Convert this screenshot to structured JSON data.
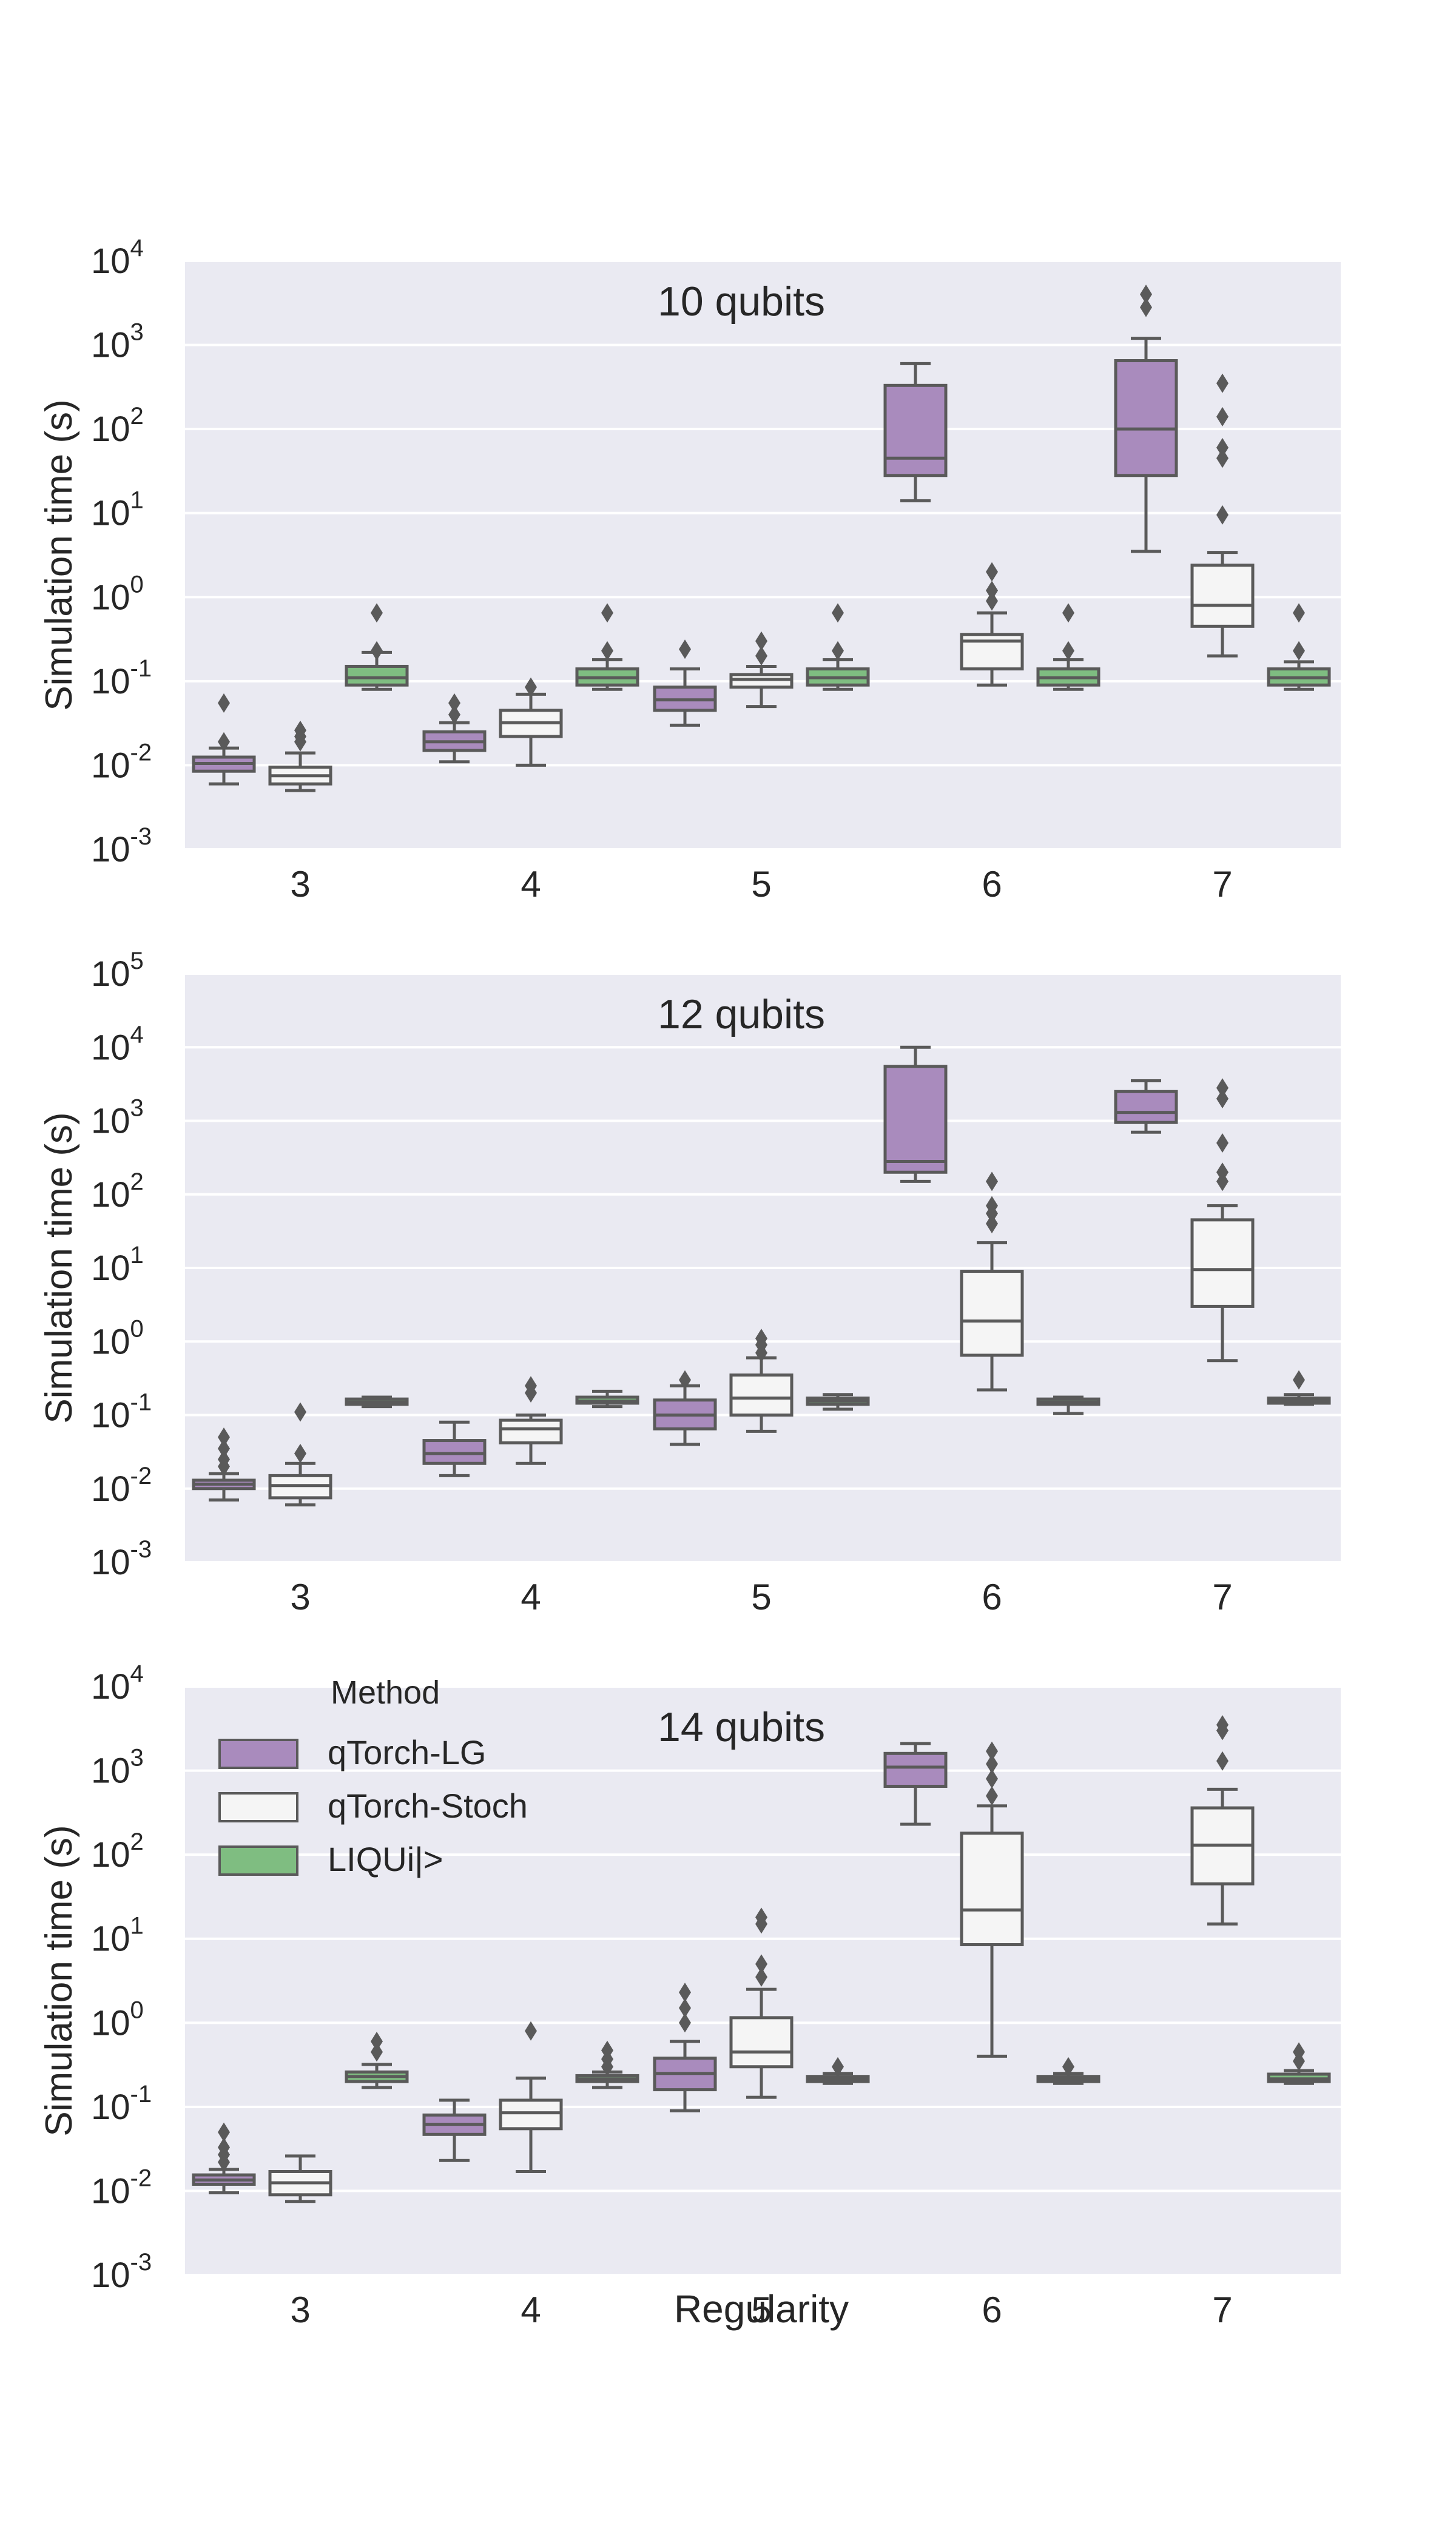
{
  "figure": {
    "shared_xlabel": "Regularity",
    "legend": {
      "title": "Method",
      "entries": [
        {
          "label": "qTorch-LG",
          "color": "#a98bbd"
        },
        {
          "label": "qTorch-Stoch",
          "color": "#f5f5f5"
        },
        {
          "label": "LIQUi|>",
          "color": "#7fbd81"
        }
      ],
      "placement": "upper-left of bottom panel"
    },
    "colors": {
      "panel_background": "#eaeaf2",
      "grid": "#ffffff",
      "box_edge": "#5a5a5a"
    }
  },
  "chart_data": [
    {
      "type": "boxplot",
      "title": "10 qubits",
      "xlabel": "",
      "ylabel": "Simulation time (s)",
      "yscale": "log",
      "ylim_exp": [
        -3,
        4
      ],
      "yticks": [
        {
          "base": "10",
          "exp": "-3"
        },
        {
          "base": "10",
          "exp": "-2"
        },
        {
          "base": "10",
          "exp": "-1"
        },
        {
          "base": "10",
          "exp": "0"
        },
        {
          "base": "10",
          "exp": "1"
        },
        {
          "base": "10",
          "exp": "2"
        },
        {
          "base": "10",
          "exp": "3"
        },
        {
          "base": "10",
          "exp": "4"
        }
      ],
      "categories": [
        "3",
        "4",
        "5",
        "6",
        "7"
      ],
      "series": [
        {
          "name": "qTorch-LG",
          "boxes": [
            {
              "whislo": 0.006,
              "q1": 0.0085,
              "med": 0.0105,
              "q3": 0.0125,
              "whishi": 0.016,
              "fliers": [
                0.019,
                0.055
              ]
            },
            {
              "whislo": 0.011,
              "q1": 0.015,
              "med": 0.019,
              "q3": 0.025,
              "whishi": 0.032,
              "fliers": [
                0.04,
                0.055
              ]
            },
            {
              "whislo": 0.03,
              "q1": 0.045,
              "med": 0.06,
              "q3": 0.085,
              "whishi": 0.14,
              "fliers": [
                0.24
              ]
            },
            {
              "whislo": 14,
              "q1": 28,
              "med": 45,
              "q3": 330,
              "whishi": 600,
              "fliers": []
            },
            {
              "whislo": 3.5,
              "q1": 28,
              "med": 100,
              "q3": 650,
              "whishi": 1200,
              "fliers": [
                2800,
                4000
              ]
            }
          ]
        },
        {
          "name": "qTorch-Stoch",
          "boxes": [
            {
              "whislo": 0.005,
              "q1": 0.006,
              "med": 0.0075,
              "q3": 0.0095,
              "whishi": 0.014,
              "fliers": [
                0.019,
                0.022,
                0.026
              ]
            },
            {
              "whislo": 0.01,
              "q1": 0.022,
              "med": 0.032,
              "q3": 0.045,
              "whishi": 0.07,
              "fliers": [
                0.085
              ]
            },
            {
              "whislo": 0.05,
              "q1": 0.085,
              "med": 0.105,
              "q3": 0.12,
              "whishi": 0.15,
              "fliers": [
                0.2,
                0.3
              ]
            },
            {
              "whislo": 0.09,
              "q1": 0.14,
              "med": 0.3,
              "q3": 0.36,
              "whishi": 0.65,
              "fliers": [
                0.9,
                1.2,
                2
              ]
            },
            {
              "whislo": 0.2,
              "q1": 0.45,
              "med": 0.8,
              "q3": 2.4,
              "whishi": 3.4,
              "fliers": [
                9.5,
                45,
                60,
                140,
                350
              ]
            }
          ]
        },
        {
          "name": "LIQUi|>",
          "boxes": [
            {
              "whislo": 0.08,
              "q1": 0.09,
              "med": 0.11,
              "q3": 0.15,
              "whishi": 0.22,
              "fliers": [
                0.23,
                0.65
              ]
            },
            {
              "whislo": 0.08,
              "q1": 0.09,
              "med": 0.11,
              "q3": 0.14,
              "whishi": 0.18,
              "fliers": [
                0.23,
                0.65
              ]
            },
            {
              "whislo": 0.08,
              "q1": 0.09,
              "med": 0.11,
              "q3": 0.14,
              "whishi": 0.18,
              "fliers": [
                0.23,
                0.65
              ]
            },
            {
              "whislo": 0.08,
              "q1": 0.09,
              "med": 0.11,
              "q3": 0.14,
              "whishi": 0.18,
              "fliers": [
                0.23,
                0.65
              ]
            },
            {
              "whislo": 0.08,
              "q1": 0.09,
              "med": 0.11,
              "q3": 0.14,
              "whishi": 0.17,
              "fliers": [
                0.23,
                0.65
              ]
            }
          ]
        }
      ]
    },
    {
      "type": "boxplot",
      "title": "12 qubits",
      "xlabel": "",
      "ylabel": "Simulation time (s)",
      "yscale": "log",
      "ylim_exp": [
        -3,
        5
      ],
      "yticks": [
        {
          "base": "10",
          "exp": "-3"
        },
        {
          "base": "10",
          "exp": "-2"
        },
        {
          "base": "10",
          "exp": "-1"
        },
        {
          "base": "10",
          "exp": "0"
        },
        {
          "base": "10",
          "exp": "1"
        },
        {
          "base": "10",
          "exp": "2"
        },
        {
          "base": "10",
          "exp": "3"
        },
        {
          "base": "10",
          "exp": "4"
        },
        {
          "base": "10",
          "exp": "5"
        }
      ],
      "categories": [
        "3",
        "4",
        "5",
        "6",
        "7"
      ],
      "series": [
        {
          "name": "qTorch-LG",
          "boxes": [
            {
              "whislo": 0.007,
              "q1": 0.01,
              "med": 0.0115,
              "q3": 0.013,
              "whishi": 0.016,
              "fliers": [
                0.02,
                0.025,
                0.035,
                0.05
              ]
            },
            {
              "whislo": 0.015,
              "q1": 0.022,
              "med": 0.03,
              "q3": 0.045,
              "whishi": 0.08,
              "fliers": []
            },
            {
              "whislo": 0.04,
              "q1": 0.065,
              "med": 0.1,
              "q3": 0.16,
              "whishi": 0.25,
              "fliers": [
                0.3
              ]
            },
            {
              "whislo": 150,
              "q1": 200,
              "med": 280,
              "q3": 5500,
              "whishi": 10000,
              "fliers": []
            },
            {
              "whislo": 700,
              "q1": 950,
              "med": 1300,
              "q3": 2500,
              "whishi": 3500,
              "fliers": []
            }
          ]
        },
        {
          "name": "qTorch-Stoch",
          "boxes": [
            {
              "whislo": 0.006,
              "q1": 0.0075,
              "med": 0.011,
              "q3": 0.015,
              "whishi": 0.022,
              "fliers": [
                0.03,
                0.11
              ]
            },
            {
              "whislo": 0.022,
              "q1": 0.042,
              "med": 0.065,
              "q3": 0.085,
              "whishi": 0.1,
              "fliers": [
                0.2,
                0.25
              ]
            },
            {
              "whislo": 0.06,
              "q1": 0.1,
              "med": 0.17,
              "q3": 0.35,
              "whishi": 0.6,
              "fliers": [
                0.7,
                0.9,
                1.1
              ]
            },
            {
              "whislo": 0.22,
              "q1": 0.65,
              "med": 1.9,
              "q3": 9,
              "whishi": 22,
              "fliers": [
                40,
                55,
                70,
                150
              ]
            },
            {
              "whislo": 0.55,
              "q1": 3,
              "med": 9.5,
              "q3": 45,
              "whishi": 70,
              "fliers": [
                150,
                200,
                500,
                2000,
                2800
              ]
            }
          ]
        },
        {
          "name": "LIQUi|>",
          "boxes": [
            {
              "whislo": 0.13,
              "q1": 0.14,
              "med": 0.15,
              "q3": 0.165,
              "whishi": 0.175,
              "fliers": []
            },
            {
              "whislo": 0.13,
              "q1": 0.145,
              "med": 0.155,
              "q3": 0.175,
              "whishi": 0.21,
              "fliers": []
            },
            {
              "whislo": 0.12,
              "q1": 0.14,
              "med": 0.155,
              "q3": 0.17,
              "whishi": 0.19,
              "fliers": []
            },
            {
              "whislo": 0.105,
              "q1": 0.14,
              "med": 0.15,
              "q3": 0.165,
              "whishi": 0.175,
              "fliers": []
            },
            {
              "whislo": 0.14,
              "q1": 0.145,
              "med": 0.155,
              "q3": 0.17,
              "whishi": 0.19,
              "fliers": [
                0.3
              ]
            }
          ]
        }
      ]
    },
    {
      "type": "boxplot",
      "title": "14 qubits",
      "xlabel": "Regularity",
      "ylabel": "Simulation time (s)",
      "yscale": "log",
      "ylim_exp": [
        -3,
        4
      ],
      "yticks": [
        {
          "base": "10",
          "exp": "-3"
        },
        {
          "base": "10",
          "exp": "-2"
        },
        {
          "base": "10",
          "exp": "-1"
        },
        {
          "base": "10",
          "exp": "0"
        },
        {
          "base": "10",
          "exp": "1"
        },
        {
          "base": "10",
          "exp": "2"
        },
        {
          "base": "10",
          "exp": "3"
        },
        {
          "base": "10",
          "exp": "4"
        }
      ],
      "categories": [
        "3",
        "4",
        "5",
        "6",
        "7"
      ],
      "series": [
        {
          "name": "qTorch-LG",
          "boxes": [
            {
              "whislo": 0.0095,
              "q1": 0.012,
              "med": 0.0135,
              "q3": 0.0155,
              "whishi": 0.018,
              "fliers": [
                0.022,
                0.027,
                0.033,
                0.05
              ]
            },
            {
              "whislo": 0.023,
              "q1": 0.047,
              "med": 0.062,
              "q3": 0.08,
              "whishi": 0.12,
              "fliers": []
            },
            {
              "whislo": 0.09,
              "q1": 0.16,
              "med": 0.25,
              "q3": 0.38,
              "whishi": 0.6,
              "fliers": [
                1,
                1.5,
                2.3
              ]
            },
            {
              "whislo": 230,
              "q1": 650,
              "med": 1100,
              "q3": 1600,
              "whishi": 2100,
              "fliers": []
            },
            null
          ]
        },
        {
          "name": "qTorch-Stoch",
          "boxes": [
            {
              "whislo": 0.0075,
              "q1": 0.009,
              "med": 0.0125,
              "q3": 0.017,
              "whishi": 0.026,
              "fliers": []
            },
            {
              "whislo": 0.017,
              "q1": 0.055,
              "med": 0.085,
              "q3": 0.12,
              "whishi": 0.22,
              "fliers": [
                0.8
              ]
            },
            {
              "whislo": 0.13,
              "q1": 0.3,
              "med": 0.45,
              "q3": 1.15,
              "whishi": 2.5,
              "fliers": [
                3.5,
                5,
                15,
                18
              ]
            },
            {
              "whislo": 0.4,
              "q1": 8.5,
              "med": 22,
              "q3": 180,
              "whishi": 380,
              "fliers": [
                500,
                800,
                1200,
                1700
              ]
            },
            {
              "whislo": 15,
              "q1": 45,
              "med": 130,
              "q3": 360,
              "whishi": 600,
              "fliers": [
                1300,
                3000,
                3500
              ]
            }
          ]
        },
        {
          "name": "LIQUi|>",
          "boxes": [
            {
              "whislo": 0.17,
              "q1": 0.2,
              "med": 0.23,
              "q3": 0.26,
              "whishi": 0.32,
              "fliers": [
                0.45,
                0.6
              ]
            },
            {
              "whislo": 0.17,
              "q1": 0.2,
              "med": 0.215,
              "q3": 0.235,
              "whishi": 0.26,
              "fliers": [
                0.3,
                0.37,
                0.47
              ]
            },
            {
              "whislo": 0.19,
              "q1": 0.2,
              "med": 0.215,
              "q3": 0.23,
              "whishi": 0.25,
              "fliers": [
                0.3
              ]
            },
            {
              "whislo": 0.19,
              "q1": 0.2,
              "med": 0.215,
              "q3": 0.23,
              "whishi": 0.25,
              "fliers": [
                0.3
              ]
            },
            {
              "whislo": 0.19,
              "q1": 0.2,
              "med": 0.215,
              "q3": 0.245,
              "whishi": 0.27,
              "fliers": [
                0.35,
                0.45
              ]
            }
          ]
        }
      ]
    }
  ]
}
